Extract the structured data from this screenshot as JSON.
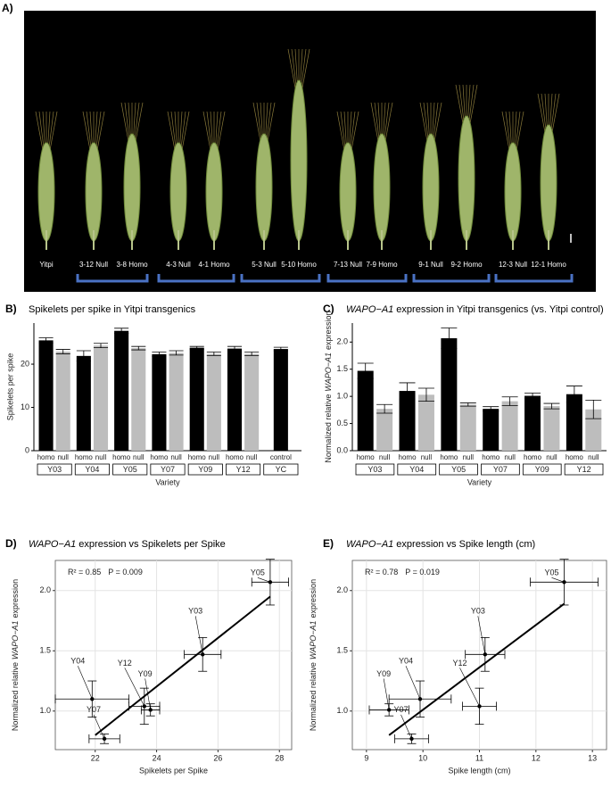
{
  "panel_a": {
    "label": "A)",
    "spikes": [
      "Yitpi",
      "3-12 Null",
      "3-8 Homo",
      "4-3 Null",
      "4-1 Homo",
      "5-3 Null",
      "5-10 Homo",
      "7-13 Null",
      "7-9 Homo",
      "9-1 Null",
      "9-2 Homo",
      "12-3 Null",
      "12-1 Homo"
    ]
  },
  "chart_data": [
    {
      "type": "bar",
      "panel": "B)",
      "title": "Spikelets per spike in Yitpi transgenics",
      "x_label": "Variety",
      "y_label": "Spikelets per spike",
      "categories": [
        "Y03",
        "Y04",
        "Y05",
        "Y07",
        "Y09",
        "Y12",
        "YC"
      ],
      "series": [
        {
          "name": "homo",
          "color": "#000000",
          "values": [
            25.5,
            21.9,
            27.7,
            22.3,
            23.8,
            23.6,
            null
          ],
          "errors": [
            0.6,
            1.2,
            0.6,
            0.5,
            0.3,
            0.5,
            null
          ]
        },
        {
          "name": "null",
          "color": "#bdbdbd",
          "values": [
            22.9,
            24.3,
            23.7,
            22.6,
            22.4,
            22.4,
            null
          ],
          "errors": [
            0.5,
            0.5,
            0.4,
            0.5,
            0.4,
            0.4,
            null
          ]
        },
        {
          "name": "control",
          "color": "#000000",
          "values": [
            null,
            null,
            null,
            null,
            null,
            null,
            23.5
          ],
          "errors": [
            null,
            null,
            null,
            null,
            null,
            null,
            0.4
          ]
        }
      ],
      "ylim": [
        0,
        29.5
      ],
      "yticks": [
        0,
        10,
        20
      ]
    },
    {
      "type": "bar",
      "panel": "C)",
      "title": [
        "WAPO−A1",
        "expression in Yitpi transgenics (vs. Yitpi control)"
      ],
      "x_label": "Variety",
      "y_label": [
        "Normalized relative",
        "WAPO−A1",
        "expression"
      ],
      "categories": [
        "Y03",
        "Y04",
        "Y05",
        "Y07",
        "Y09",
        "Y12"
      ],
      "series": [
        {
          "name": "homo",
          "color": "#000000",
          "values": [
            1.47,
            1.1,
            2.07,
            0.77,
            1.01,
            1.04
          ],
          "errors": [
            0.14,
            0.15,
            0.19,
            0.04,
            0.05,
            0.15
          ]
        },
        {
          "name": "null",
          "color": "#bdbdbd",
          "values": [
            0.77,
            1.03,
            0.85,
            0.91,
            0.82,
            0.76
          ],
          "errors": [
            0.08,
            0.12,
            0.03,
            0.08,
            0.05,
            0.17
          ]
        }
      ],
      "ylim": [
        0,
        2.35
      ],
      "yticks": [
        {
          "value": 0,
          "label": "0.0"
        },
        {
          "value": 0.5,
          "label": "0.5"
        },
        {
          "value": 1,
          "label": "1.0"
        },
        {
          "value": 1.5,
          "label": "1.5"
        },
        {
          "value": 2,
          "label": "2.0"
        }
      ]
    },
    {
      "type": "scatter",
      "panel": "D)",
      "title": [
        "WAPO−A1",
        "expression vs Spikelets per Spike"
      ],
      "x_label": "Spikelets per Spike",
      "y_label": [
        "Normalized relative",
        "WAPO−A1",
        "expression"
      ],
      "labels": [
        "Y03",
        "Y04",
        "Y05",
        "Y07",
        "Y09",
        "Y12"
      ],
      "x": [
        25.5,
        21.9,
        27.7,
        22.3,
        23.8,
        23.6
      ],
      "xerr": [
        0.6,
        1.2,
        0.6,
        0.5,
        0.3,
        0.5
      ],
      "y": [
        1.47,
        1.1,
        2.07,
        0.77,
        1.01,
        1.04
      ],
      "yerr": [
        0.14,
        0.15,
        0.19,
        0.04,
        0.05,
        0.15
      ],
      "fit": {
        "x": [
          22,
          27.7
        ],
        "y": [
          0.8,
          1.95
        ]
      },
      "annotation": [
        "R² = 0.85",
        "P = 0.009"
      ],
      "color": "#000000",
      "xlim": [
        20.7,
        28.4
      ],
      "xticks": [
        22,
        24,
        26,
        28
      ],
      "ylim": [
        0.68,
        2.25
      ],
      "yticks": [
        {
          "value": 1,
          "label": "1.0"
        },
        {
          "value": 1.5,
          "label": "1.5"
        },
        {
          "value": 2,
          "label": "2.0"
        }
      ],
      "grid": true
    },
    {
      "type": "scatter",
      "panel": "E)",
      "title": [
        "WAPO−A1",
        "expression vs Spike length (cm)"
      ],
      "x_label": "Spike length (cm)",
      "y_label": [
        "Normalized relative",
        "WAPO−A1",
        "expression"
      ],
      "labels": [
        "Y03",
        "Y04",
        "Y05",
        "Y07",
        "Y09",
        "Y12"
      ],
      "x": [
        11.1,
        9.95,
        12.5,
        9.8,
        9.4,
        11.0
      ],
      "xerr": [
        0.35,
        0.55,
        0.6,
        0.3,
        0.35,
        0.3
      ],
      "y": [
        1.47,
        1.1,
        2.07,
        0.77,
        1.01,
        1.04
      ],
      "yerr": [
        0.14,
        0.15,
        0.19,
        0.04,
        0.05,
        0.15
      ],
      "fit": {
        "x": [
          9.4,
          12.5
        ],
        "y": [
          0.8,
          1.89
        ]
      },
      "annotation": [
        "R² = 0.78",
        "P = 0.019"
      ],
      "color": "#000000",
      "xlim": [
        8.75,
        13.25
      ],
      "xticks": [
        9,
        10,
        11,
        12,
        13
      ],
      "ylim": [
        0.68,
        2.25
      ],
      "yticks": [
        {
          "value": 1,
          "label": "1.0"
        },
        {
          "value": 1.5,
          "label": "1.5"
        },
        {
          "value": 2,
          "label": "2.0"
        }
      ],
      "grid": true
    }
  ]
}
